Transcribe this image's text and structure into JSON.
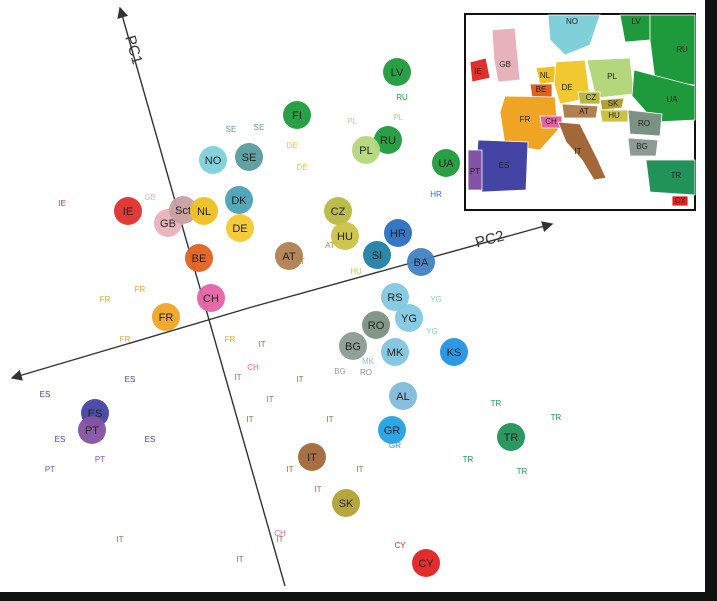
{
  "axes": {
    "pc1": "PC1",
    "pc2": "PC2"
  },
  "populations": [
    {
      "label": "LV",
      "color": "#1e9a3c"
    },
    {
      "label": "FI",
      "color": "#1e9a3c"
    },
    {
      "label": "RU",
      "color": "#1e9a3c"
    },
    {
      "label": "PL",
      "color": "#b4d77c"
    },
    {
      "label": "UA",
      "color": "#1e9a3c"
    },
    {
      "label": "NO",
      "color": "#80d0da"
    },
    {
      "label": "SE",
      "color": "#5a9c9c"
    },
    {
      "label": "DK",
      "color": "#4aa2b4"
    },
    {
      "label": "IE",
      "color": "#e0302c"
    },
    {
      "label": "GB",
      "color": "#e8b2ba"
    },
    {
      "label": "Sct",
      "color": "#c8a0a0"
    },
    {
      "label": "NL",
      "color": "#f0c020"
    },
    {
      "label": "DE",
      "color": "#f2c830"
    },
    {
      "label": "CZ",
      "color": "#b8b842"
    },
    {
      "label": "HU",
      "color": "#cac244"
    },
    {
      "label": "HR",
      "color": "#2a70c2"
    },
    {
      "label": "SI",
      "color": "#2080a2"
    },
    {
      "label": "BA",
      "color": "#4282c2"
    },
    {
      "label": "AT",
      "color": "#b08050"
    },
    {
      "label": "BE",
      "color": "#e06020"
    },
    {
      "label": "CH",
      "color": "#e462a4"
    },
    {
      "label": "FR",
      "color": "#f0a424"
    },
    {
      "label": "RS",
      "color": "#82c8e2"
    },
    {
      "label": "YG",
      "color": "#82c8e2"
    },
    {
      "label": "RO",
      "color": "#7a9282"
    },
    {
      "label": "KS",
      "color": "#2292e2"
    },
    {
      "label": "BG",
      "color": "#8c9c92"
    },
    {
      "label": "MK",
      "color": "#82c4e0"
    },
    {
      "label": "AL",
      "color": "#82bada"
    },
    {
      "label": "GR",
      "color": "#22a2e2"
    },
    {
      "label": "TR",
      "color": "#20925a"
    },
    {
      "label": "ES",
      "color": "#4444a4"
    },
    {
      "label": "PT",
      "color": "#8452a4"
    },
    {
      "label": "IT",
      "color": "#a2683a"
    },
    {
      "label": "SK",
      "color": "#b2a232"
    },
    {
      "label": "CY",
      "color": "#e22222"
    }
  ],
  "samples": [
    {
      "label": "IT",
      "color": "#a2683a"
    },
    {
      "label": "IT",
      "color": "#a2683a"
    },
    {
      "label": "IT",
      "color": "#a2683a"
    },
    {
      "label": "IT",
      "color": "#a2683a"
    },
    {
      "label": "IT",
      "color": "#a2683a"
    },
    {
      "label": "IT",
      "color": "#a2683a"
    },
    {
      "label": "IT",
      "color": "#a2683a"
    },
    {
      "label": "IT",
      "color": "#a2683a"
    },
    {
      "label": "IT",
      "color": "#a2683a"
    },
    {
      "label": "IT",
      "color": "#a2683a"
    },
    {
      "label": "IT",
      "color": "#a2683a"
    },
    {
      "label": "IT",
      "color": "#a2683a"
    },
    {
      "label": "ES",
      "color": "#4444a4"
    },
    {
      "label": "ES",
      "color": "#4444a4"
    },
    {
      "label": "ES",
      "color": "#4444a4"
    },
    {
      "label": "ES",
      "color": "#4444a4"
    },
    {
      "label": "PT",
      "color": "#8452a4"
    },
    {
      "label": "PT",
      "color": "#8452a4"
    },
    {
      "label": "FR",
      "color": "#f0a424"
    },
    {
      "label": "FR",
      "color": "#f0a424"
    },
    {
      "label": "FR",
      "color": "#f0a424"
    },
    {
      "label": "FR",
      "color": "#f0a424"
    },
    {
      "label": "TR",
      "color": "#20925a"
    },
    {
      "label": "TR",
      "color": "#20925a"
    },
    {
      "label": "TR",
      "color": "#20925a"
    },
    {
      "label": "TR",
      "color": "#20925a"
    },
    {
      "label": "CY",
      "color": "#e22222"
    },
    {
      "label": "HR",
      "color": "#2a70c2"
    },
    {
      "label": "PL",
      "color": "#b4d77c"
    },
    {
      "label": "PL",
      "color": "#b4d77c"
    },
    {
      "label": "RU",
      "color": "#1e9a3c"
    },
    {
      "label": "SE",
      "color": "#5a9c9c"
    },
    {
      "label": "SE",
      "color": "#5a9c9c"
    },
    {
      "label": "DE",
      "color": "#f2c830"
    },
    {
      "label": "DE",
      "color": "#f2c830"
    },
    {
      "label": "AT",
      "color": "#b08050"
    },
    {
      "label": "AT",
      "color": "#b08050"
    },
    {
      "label": "YG",
      "color": "#82c8e2"
    },
    {
      "label": "YG",
      "color": "#82c8e2"
    },
    {
      "label": "RO",
      "color": "#7a9282"
    },
    {
      "label": "MK",
      "color": "#82c4e0"
    },
    {
      "label": "GR",
      "color": "#22a2e2"
    },
    {
      "label": "CH",
      "color": "#e462a4"
    },
    {
      "label": "CH",
      "color": "#e462a4"
    },
    {
      "label": "IE",
      "color": "#e0302c"
    },
    {
      "label": "GB",
      "color": "#e8b2ba"
    },
    {
      "label": "HU",
      "color": "#cac244"
    },
    {
      "label": "BG",
      "color": "#8c9c92"
    }
  ],
  "map": {
    "regions": [
      {
        "label": "NO",
        "color": "#80d0da"
      },
      {
        "label": "LV",
        "color": "#1e9a3c"
      },
      {
        "label": "RU",
        "color": "#1e9a3c"
      },
      {
        "label": "IE",
        "color": "#e0302c"
      },
      {
        "label": "GB",
        "color": "#e8b2ba"
      },
      {
        "label": "NL",
        "color": "#f0c020"
      },
      {
        "label": "BE",
        "color": "#e06020"
      },
      {
        "label": "DE",
        "color": "#f2c830"
      },
      {
        "label": "PL",
        "color": "#b4d77c"
      },
      {
        "label": "UA",
        "color": "#1e9a3c"
      },
      {
        "label": "FR",
        "color": "#f0a424"
      },
      {
        "label": "CZ",
        "color": "#b8b842"
      },
      {
        "label": "SK",
        "color": "#b2a232"
      },
      {
        "label": "AT",
        "color": "#b08050"
      },
      {
        "label": "HU",
        "color": "#cac244"
      },
      {
        "label": "CH",
        "color": "#e462a4"
      },
      {
        "label": "RO",
        "color": "#7a9282"
      },
      {
        "label": "IT",
        "color": "#a2683a"
      },
      {
        "label": "BG",
        "color": "#8c9c92"
      },
      {
        "label": "ES",
        "color": "#4444a4"
      },
      {
        "label": "PT",
        "color": "#8452a4"
      },
      {
        "label": "TR",
        "color": "#20925a"
      },
      {
        "label": "CY",
        "color": "#e22222"
      }
    ]
  }
}
